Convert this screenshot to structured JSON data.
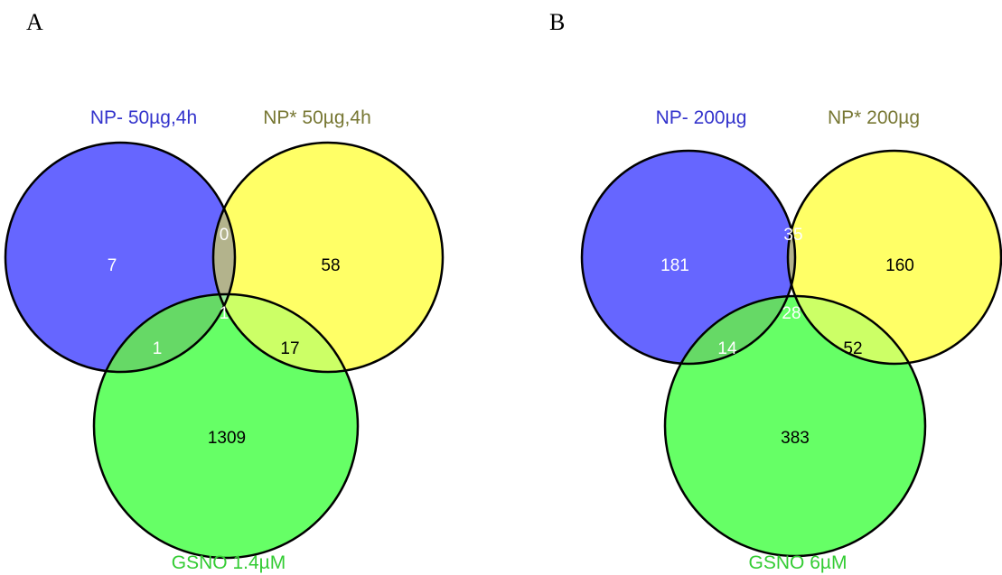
{
  "panels": [
    {
      "letter": "A",
      "sets": [
        {
          "label": "NP- 50µg,4h",
          "color": "#6666ff",
          "label_color": "#3333cc"
        },
        {
          "label": "NP* 50µg,4h",
          "color": "#ffff66",
          "label_color": "#777733"
        },
        {
          "label": "GSNO 1.4µM",
          "color": "#66ff66",
          "label_color": "#33cc33"
        }
      ],
      "counts": {
        "only_1": "7",
        "only_2": "58",
        "only_3": "1309",
        "1_2": "0",
        "1_3": "1",
        "2_3": "17",
        "1_2_3": "1"
      }
    },
    {
      "letter": "B",
      "sets": [
        {
          "label": "NP- 200µg",
          "color": "#6666ff",
          "label_color": "#3333cc"
        },
        {
          "label": "NP* 200µg",
          "color": "#ffff66",
          "label_color": "#777733"
        },
        {
          "label": "GSNO 6µM",
          "color": "#66ff66",
          "label_color": "#33cc33"
        }
      ],
      "counts": {
        "only_1": "181",
        "only_2": "160",
        "only_3": "383",
        "1_2": "35",
        "1_3": "14",
        "2_3": "52",
        "1_2_3": "28"
      }
    }
  ],
  "colors": {
    "region_1_2": "#b3b38c",
    "region_1_3": "#66d966",
    "region_2_3": "#ccff66",
    "region_1_2_3": "#99e699",
    "count_light": "#ffffff",
    "count_dark": "#000000"
  }
}
